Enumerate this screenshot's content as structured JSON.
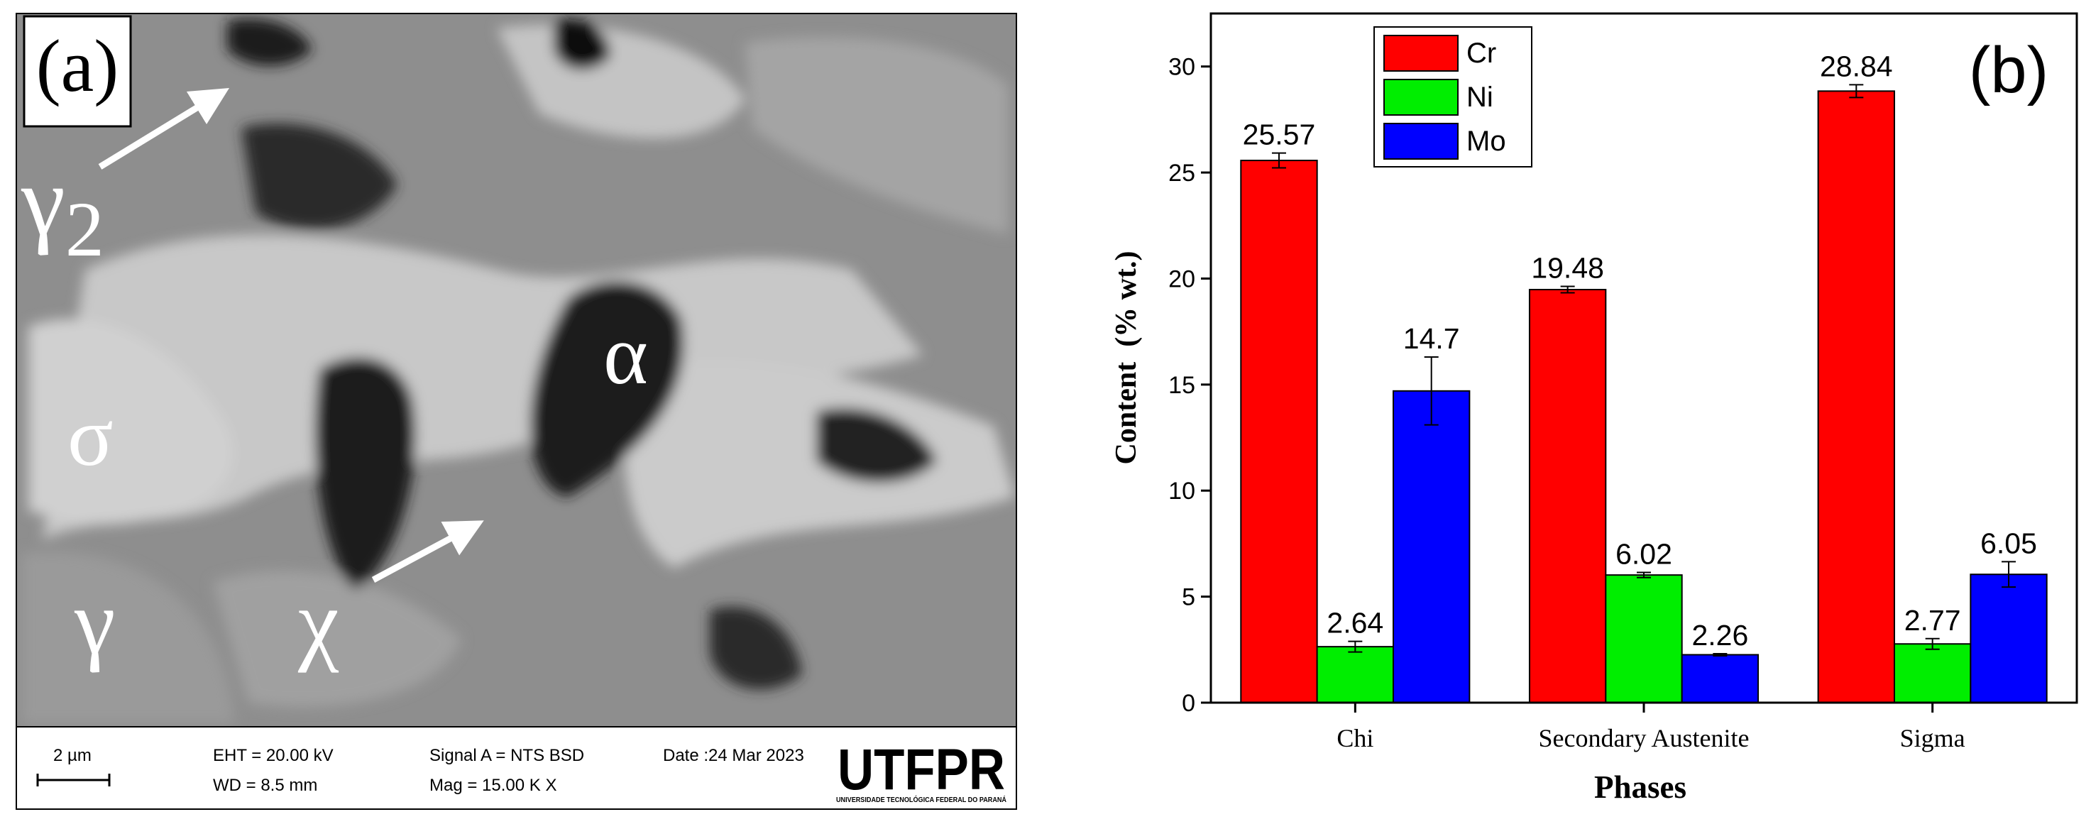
{
  "micrograph": {
    "panel_label": "(a)",
    "phase_labels": {
      "gamma2": {
        "symbol": "γ",
        "subscript": "2"
      },
      "sigma": "σ",
      "alpha": "α",
      "gamma": "γ",
      "chi": "χ"
    },
    "info_bar": {
      "scale": "2 µm",
      "eht": "EHT = 20.00 kV",
      "wd": "WD = 8.5 mm",
      "signal": "Signal A = NTS BSD",
      "mag": "Mag = 15.00 K X",
      "date": "Date :24 Mar 2023",
      "logo": "UTFPR",
      "logo_caption": "UNIVERSIDADE TECNOLÓGICA FEDERAL DO PARANÁ"
    }
  },
  "chart_data": {
    "type": "bar",
    "annotation": "(b)",
    "x_label": "Phases",
    "y_label": "Content  (% wt.)",
    "categories": [
      "Chi",
      "Secondary Austenite",
      "Sigma"
    ],
    "series": [
      {
        "name": "Cr",
        "color": "#ff0000",
        "values": [
          25.57,
          19.48,
          28.84
        ],
        "errors": [
          0.35,
          0.15,
          0.3
        ]
      },
      {
        "name": "Ni",
        "color": "#00ee00",
        "values": [
          2.64,
          6.02,
          2.77
        ],
        "errors": [
          0.25,
          0.12,
          0.25
        ]
      },
      {
        "name": "Mo",
        "color": "#0000ff",
        "values": [
          14.7,
          2.26,
          6.05
        ],
        "errors": [
          1.6,
          0.05,
          0.6
        ]
      }
    ],
    "ylim": [
      0,
      32.5
    ],
    "yticks": [
      0,
      5,
      10,
      15,
      20,
      25,
      30
    ],
    "legend": "upper center",
    "grid": false
  }
}
